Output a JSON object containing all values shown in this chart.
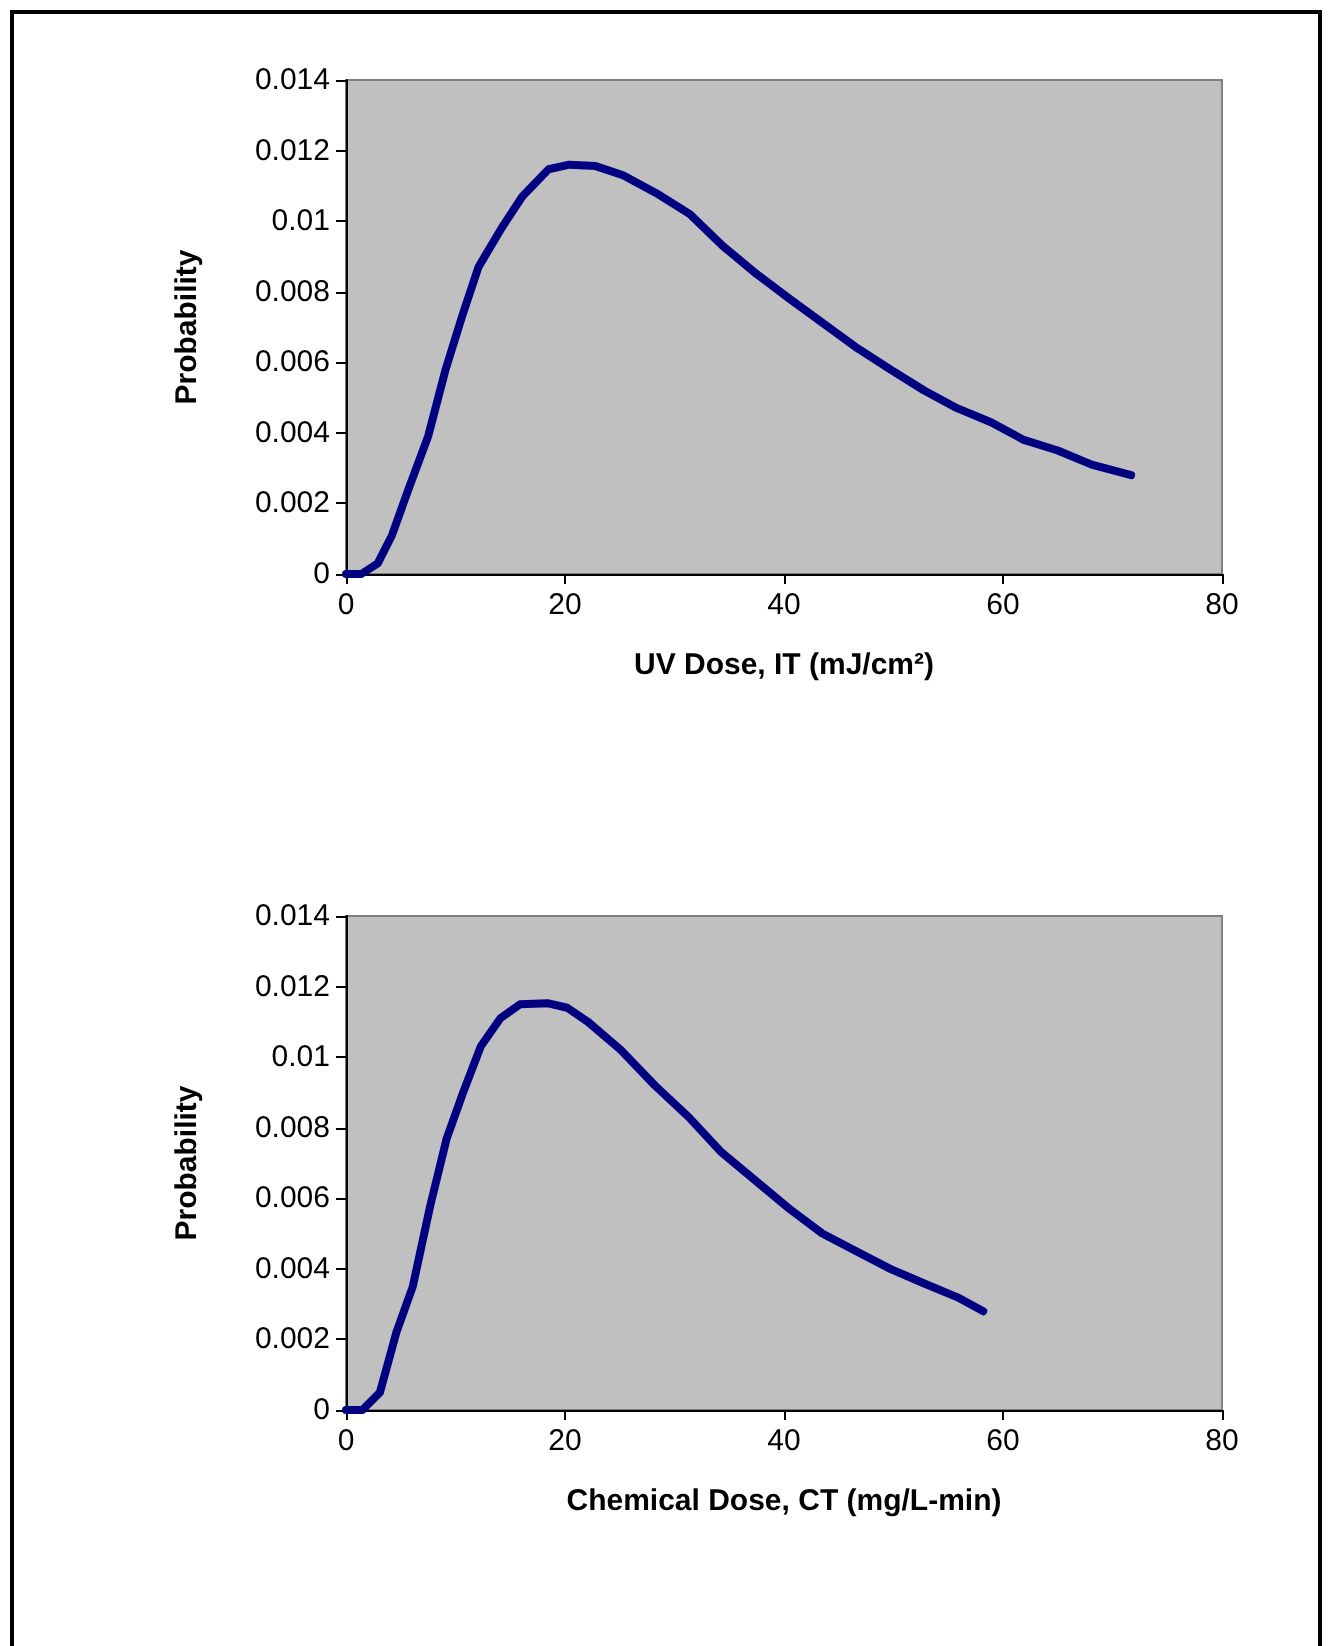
{
  "chart_data": [
    {
      "type": "line",
      "xlabel": "UV Dose, IT (mJ/cm²)",
      "ylabel": "Probability",
      "xlim": [
        0,
        80
      ],
      "xticks": [
        0,
        20,
        40,
        60,
        80
      ],
      "ylim": [
        0,
        0.014
      ],
      "yticks": [
        0,
        0.002,
        0.004,
        0.006,
        0.008,
        0.01,
        0.012,
        0.014
      ],
      "marker": "none",
      "line_style": "solid",
      "series": [
        {
          "color": "#000080",
          "x": [
            0,
            1.4,
            2.9,
            4.2,
            5.7,
            7.5,
            9.1,
            10.6,
            12.1,
            14.2,
            16.1,
            18.5,
            20.4,
            22.8,
            25.3,
            28.3,
            31.4,
            34.4,
            37.5,
            40.5,
            43.6,
            46.7,
            49.7,
            52.8,
            55.8,
            58.9,
            61.9,
            65.0,
            68.1,
            71.7
          ],
          "values": [
            0,
            0,
            0.0003,
            0.0011,
            0.0024,
            0.0039,
            0.0058,
            0.0073,
            0.0087,
            0.0098,
            0.0107,
            0.01147,
            0.0116,
            0.01156,
            0.0113,
            0.0108,
            0.0102,
            0.0093,
            0.0085,
            0.0078,
            0.0071,
            0.0064,
            0.0058,
            0.0052,
            0.0047,
            0.0043,
            0.0038,
            0.0035,
            0.0031,
            0.0028
          ]
        }
      ]
    },
    {
      "type": "line",
      "xlabel": "Chemical Dose, CT (mg/L-min)",
      "ylabel": "Probability",
      "xlim": [
        0,
        80
      ],
      "xticks": [
        0,
        20,
        40,
        60,
        80
      ],
      "ylim": [
        0,
        0.014
      ],
      "yticks": [
        0,
        0.002,
        0.004,
        0.006,
        0.008,
        0.01,
        0.012,
        0.014
      ],
      "marker": "none",
      "line_style": "solid",
      "series": [
        {
          "color": "#000080",
          "x": [
            0,
            1.5,
            3.1,
            4.6,
            6.1,
            7.7,
            9.2,
            10.7,
            12.3,
            14.1,
            15.9,
            18.4,
            20.2,
            22.1,
            25.1,
            28.2,
            31.3,
            34.3,
            37.4,
            40.5,
            43.5,
            46.6,
            49.7,
            52.7,
            55.8,
            58.2
          ],
          "values": [
            0,
            0,
            0.0005,
            0.0022,
            0.0035,
            0.0058,
            0.0077,
            0.009,
            0.0103,
            0.0111,
            0.0115,
            0.01153,
            0.0114,
            0.011,
            0.0102,
            0.0092,
            0.0083,
            0.0073,
            0.0065,
            0.0057,
            0.005,
            0.0045,
            0.004,
            0.0036,
            0.0032,
            0.0028
          ]
        }
      ]
    }
  ]
}
